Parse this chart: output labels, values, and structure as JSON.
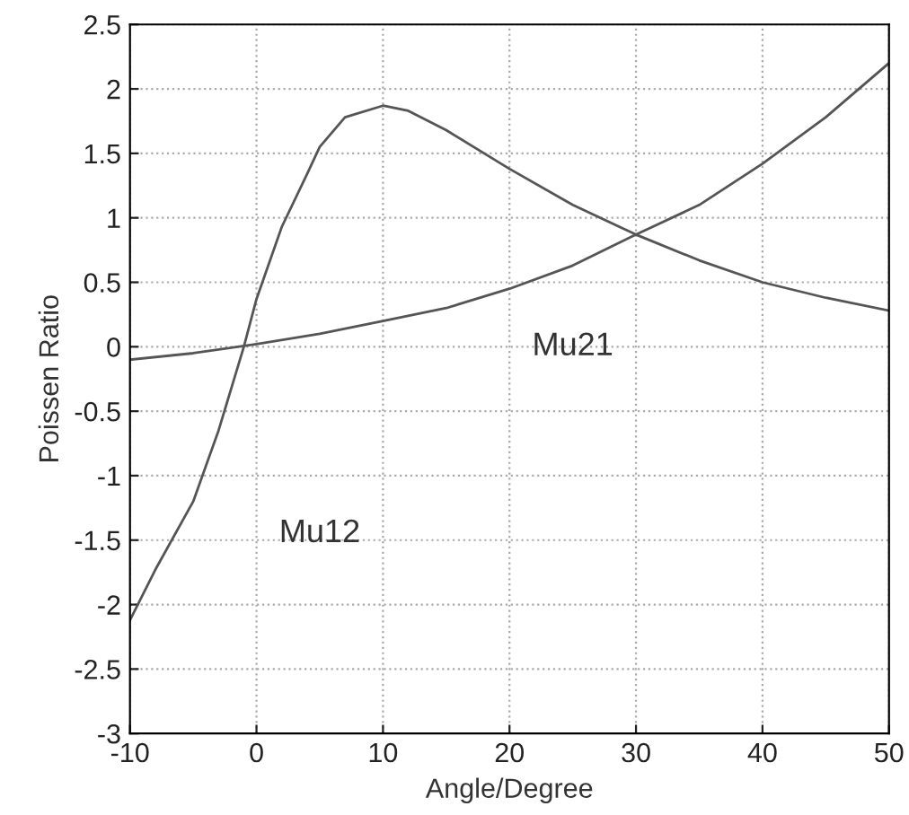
{
  "chart_data": {
    "type": "line",
    "xlabel": "Angle/Degree",
    "ylabel": "Poissen Ratio",
    "xlim": [
      -10,
      50
    ],
    "xticks": [
      -10,
      0,
      10,
      20,
      30,
      40,
      50
    ],
    "ylim": [
      -3,
      2.5
    ],
    "yticks": [
      -3,
      -2.5,
      -2,
      -1.5,
      -1,
      -0.5,
      0,
      0.5,
      1,
      1.5,
      2,
      2.5
    ],
    "grid": true,
    "line_style": "solid",
    "marker": "none",
    "series": [
      {
        "name": "Mu12",
        "color": "#555555",
        "x": [
          -10,
          -8,
          -5,
          -3,
          -1,
          0,
          2,
          4,
          5,
          7,
          10,
          12,
          15,
          20,
          25,
          30,
          35,
          40,
          45,
          50
        ],
        "values": [
          -2.12,
          -1.73,
          -1.2,
          -0.65,
          0,
          0.37,
          0.93,
          1.34,
          1.55,
          1.78,
          1.87,
          1.83,
          1.68,
          1.38,
          1.1,
          0.87,
          0.67,
          0.5,
          0.38,
          0.28
        ]
      },
      {
        "name": "Mu21",
        "color": "#555555",
        "x": [
          -10,
          -5,
          0,
          5,
          10,
          15,
          20,
          25,
          30,
          35,
          40,
          45,
          50
        ],
        "values": [
          -0.1,
          -0.05,
          0.02,
          0.1,
          0.2,
          0.3,
          0.45,
          0.63,
          0.87,
          1.1,
          1.42,
          1.78,
          2.2
        ]
      }
    ]
  }
}
